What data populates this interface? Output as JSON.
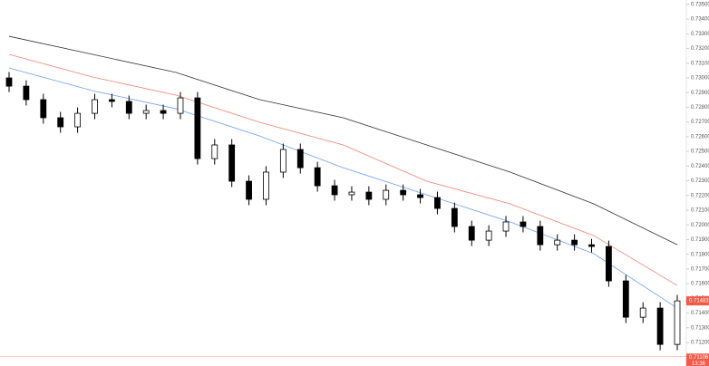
{
  "chart_data": {
    "type": "candlestick",
    "open": [
      0.73,
      0.72944,
      0.72852,
      0.72729,
      0.72667,
      0.72759,
      0.72852,
      0.7284,
      0.72759,
      0.72778,
      0.72759,
      0.72864,
      0.72451,
      0.72544,
      0.72297,
      0.72174,
      0.72359,
      0.72513,
      0.72389,
      0.72266,
      0.72205,
      0.72223,
      0.72174,
      0.72235,
      0.72205,
      0.72186,
      0.72112,
      0.71989,
      0.71896,
      0.71958,
      0.7202,
      0.71989,
      0.71865,
      0.71896,
      0.71865,
      0.71853,
      0.71619,
      0.71372,
      0.71434,
      0.71187
    ],
    "high": [
      0.7304,
      0.72984,
      0.72892,
      0.72769,
      0.72799,
      0.72892,
      0.72892,
      0.7288,
      0.72818,
      0.72818,
      0.72904,
      0.72904,
      0.72584,
      0.72584,
      0.72337,
      0.72399,
      0.72553,
      0.72553,
      0.72429,
      0.72306,
      0.72263,
      0.72263,
      0.72275,
      0.72275,
      0.72245,
      0.72226,
      0.72152,
      0.72029,
      0.71998,
      0.7206,
      0.7206,
      0.72029,
      0.71936,
      0.71936,
      0.71905,
      0.71893,
      0.71659,
      0.71474,
      0.71474,
      0.71523
    ],
    "low": [
      0.72904,
      0.72812,
      0.72689,
      0.72627,
      0.72627,
      0.72719,
      0.728,
      0.72719,
      0.72719,
      0.72719,
      0.72719,
      0.72411,
      0.72411,
      0.72257,
      0.72134,
      0.72134,
      0.72319,
      0.72349,
      0.72226,
      0.72165,
      0.72165,
      0.72134,
      0.72134,
      0.72165,
      0.72146,
      0.72072,
      0.71949,
      0.71856,
      0.71856,
      0.71918,
      0.71949,
      0.71825,
      0.71825,
      0.71825,
      0.71813,
      0.71579,
      0.71332,
      0.71332,
      0.71147,
      0.71147
    ],
    "close": [
      0.72944,
      0.72852,
      0.72729,
      0.72667,
      0.72759,
      0.72852,
      0.7284,
      0.72759,
      0.72778,
      0.72759,
      0.72864,
      0.72451,
      0.72544,
      0.72297,
      0.72174,
      0.72359,
      0.72513,
      0.72389,
      0.72266,
      0.72205,
      0.72223,
      0.72174,
      0.72235,
      0.72205,
      0.72186,
      0.72112,
      0.71989,
      0.71896,
      0.71958,
      0.7202,
      0.71989,
      0.71865,
      0.71896,
      0.71865,
      0.71853,
      0.71619,
      0.71372,
      0.71434,
      0.71187,
      0.71483
    ],
    "up_color": "#ffffff",
    "down_color": "#000000",
    "moving_averages": [
      {
        "color": "#333333",
        "values": [
          0.73283,
          0.7316,
          0.73037,
          0.72852,
          0.72729,
          0.72544,
          0.72359,
          0.72143,
          0.71865
        ]
      },
      {
        "color": "#f08070",
        "values": [
          0.7316,
          0.73006,
          0.72883,
          0.72698,
          0.72544,
          0.72297,
          0.72143,
          0.71927,
          0.71588
        ]
      },
      {
        "color": "#6f9ef0",
        "values": [
          0.73068,
          0.72913,
          0.7279,
          0.72605,
          0.72389,
          0.72205,
          0.7202,
          0.71804,
          0.71434
        ]
      }
    ],
    "ylim": [
      0.7104,
      0.7353
    ],
    "yticks": [
      {
        "value": 0.735,
        "label": "0.73500"
      },
      {
        "value": 0.734,
        "label": "0.73400"
      },
      {
        "value": 0.733,
        "label": "0.73300"
      },
      {
        "value": 0.732,
        "label": "0.73200"
      },
      {
        "value": 0.731,
        "label": "0.73100"
      },
      {
        "value": 0.73,
        "label": "0.73000"
      },
      {
        "value": 0.729,
        "label": "0.72900"
      },
      {
        "value": 0.728,
        "label": "0.72800"
      },
      {
        "value": 0.727,
        "label": "0.72700"
      },
      {
        "value": 0.726,
        "label": "0.72600"
      },
      {
        "value": 0.725,
        "label": "0.72500"
      },
      {
        "value": 0.724,
        "label": "0.72400"
      },
      {
        "value": 0.723,
        "label": "0.72300"
      },
      {
        "value": 0.722,
        "label": "0.72200"
      },
      {
        "value": 0.721,
        "label": "0.72100"
      },
      {
        "value": 0.72,
        "label": "0.72000"
      },
      {
        "value": 0.719,
        "label": "0.71900"
      },
      {
        "value": 0.718,
        "label": "0.71800"
      },
      {
        "value": 0.717,
        "label": "0.71700"
      },
      {
        "value": 0.716,
        "label": "0.71600"
      },
      {
        "value": 0.715,
        "label": "0.71500"
      },
      {
        "value": 0.714,
        "label": "0.71400"
      },
      {
        "value": 0.713,
        "label": "0.71300"
      },
      {
        "value": 0.712,
        "label": "0.71200"
      }
    ],
    "last_price": {
      "value": 0.71483,
      "label": "0.71483"
    },
    "marker_price": {
      "value": 0.71106,
      "label": "0.71106",
      "time": "13:36"
    }
  }
}
